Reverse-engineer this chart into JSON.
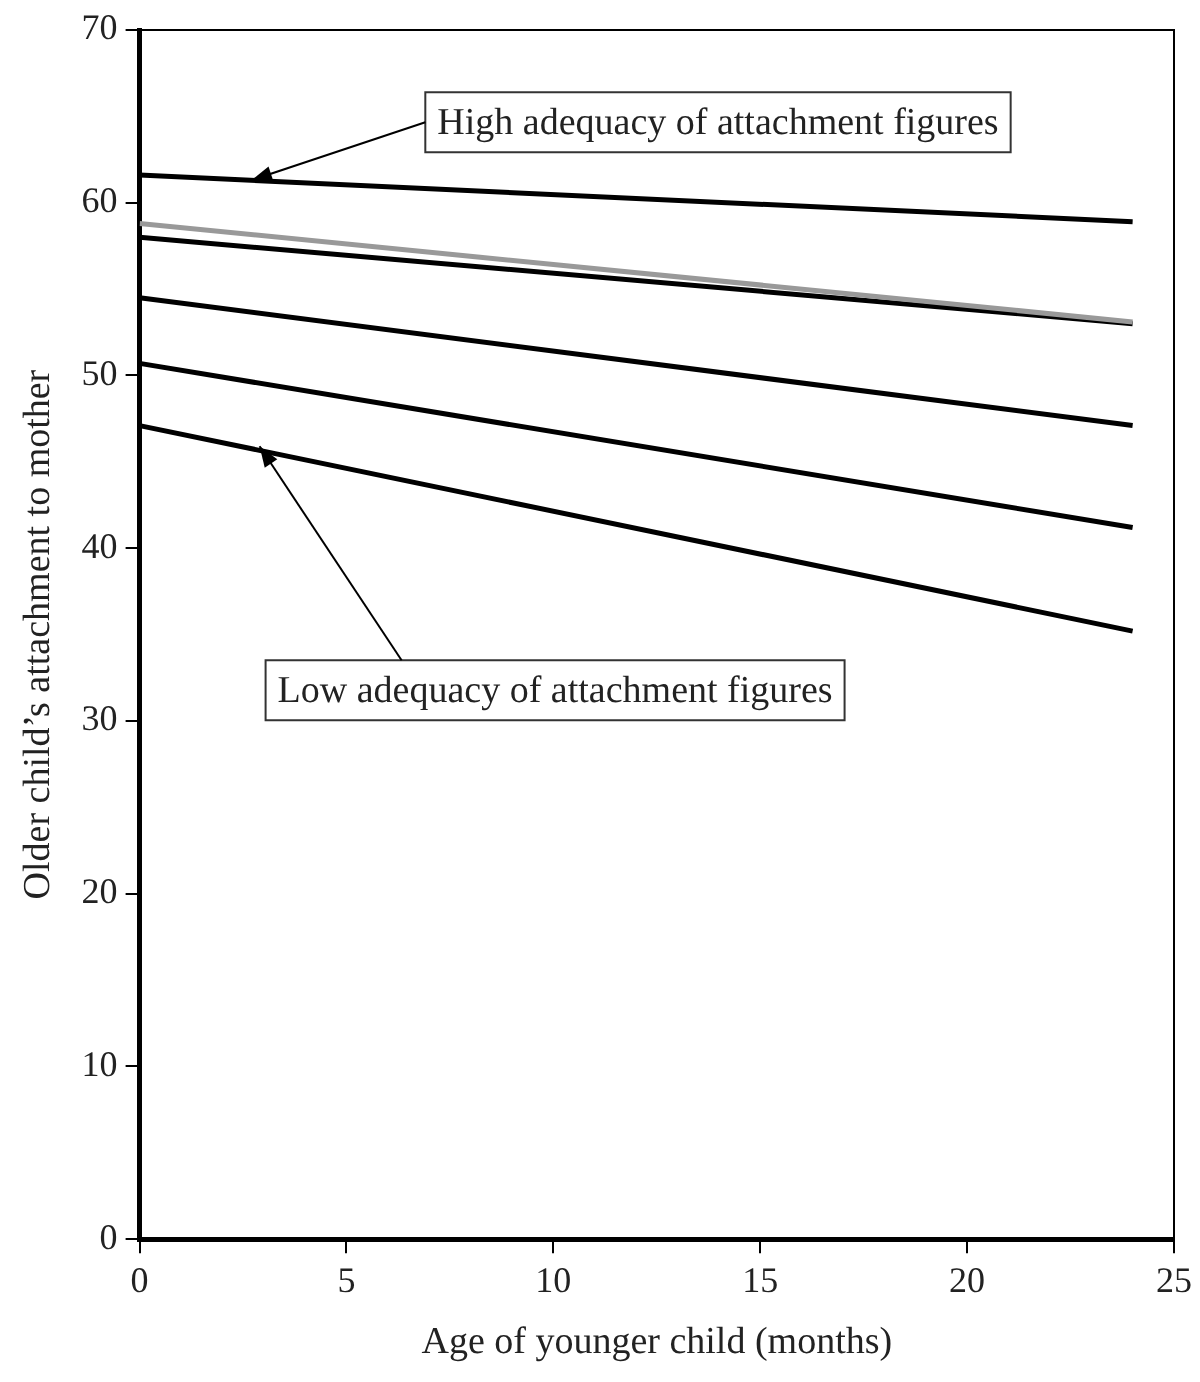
{
  "chart_data": {
    "type": "line",
    "xlabel": "Age of younger child (months)",
    "ylabel": "Older child’s attachment to mother",
    "x": [
      0,
      24
    ],
    "series": [
      {
        "color": "#000000",
        "values": [
          61.6,
          58.9
        ]
      },
      {
        "color": "#000000",
        "values": [
          58.0,
          53.0
        ]
      },
      {
        "color": "#999999",
        "values": [
          58.8,
          53.1
        ]
      },
      {
        "color": "#000000",
        "values": [
          54.5,
          47.1
        ]
      },
      {
        "color": "#000000",
        "values": [
          50.7,
          41.2
        ]
      },
      {
        "color": "#000000",
        "values": [
          47.1,
          35.2
        ]
      }
    ],
    "xlim": [
      0,
      25
    ],
    "xticks": [
      0,
      5,
      10,
      15,
      20,
      25
    ],
    "ylim": [
      0,
      70
    ],
    "yticks": [
      0,
      10,
      20,
      30,
      40,
      50,
      60,
      70
    ],
    "grid": false,
    "legend": false,
    "marker": "none",
    "line_style": "solid",
    "annotations": [
      {
        "text": "High adequacy of attachment figures",
        "x": 2.7,
        "y": 61.3
      },
      {
        "text": "Low adequacy of attachment figures",
        "x": 2.9,
        "y": 45.9
      }
    ]
  }
}
